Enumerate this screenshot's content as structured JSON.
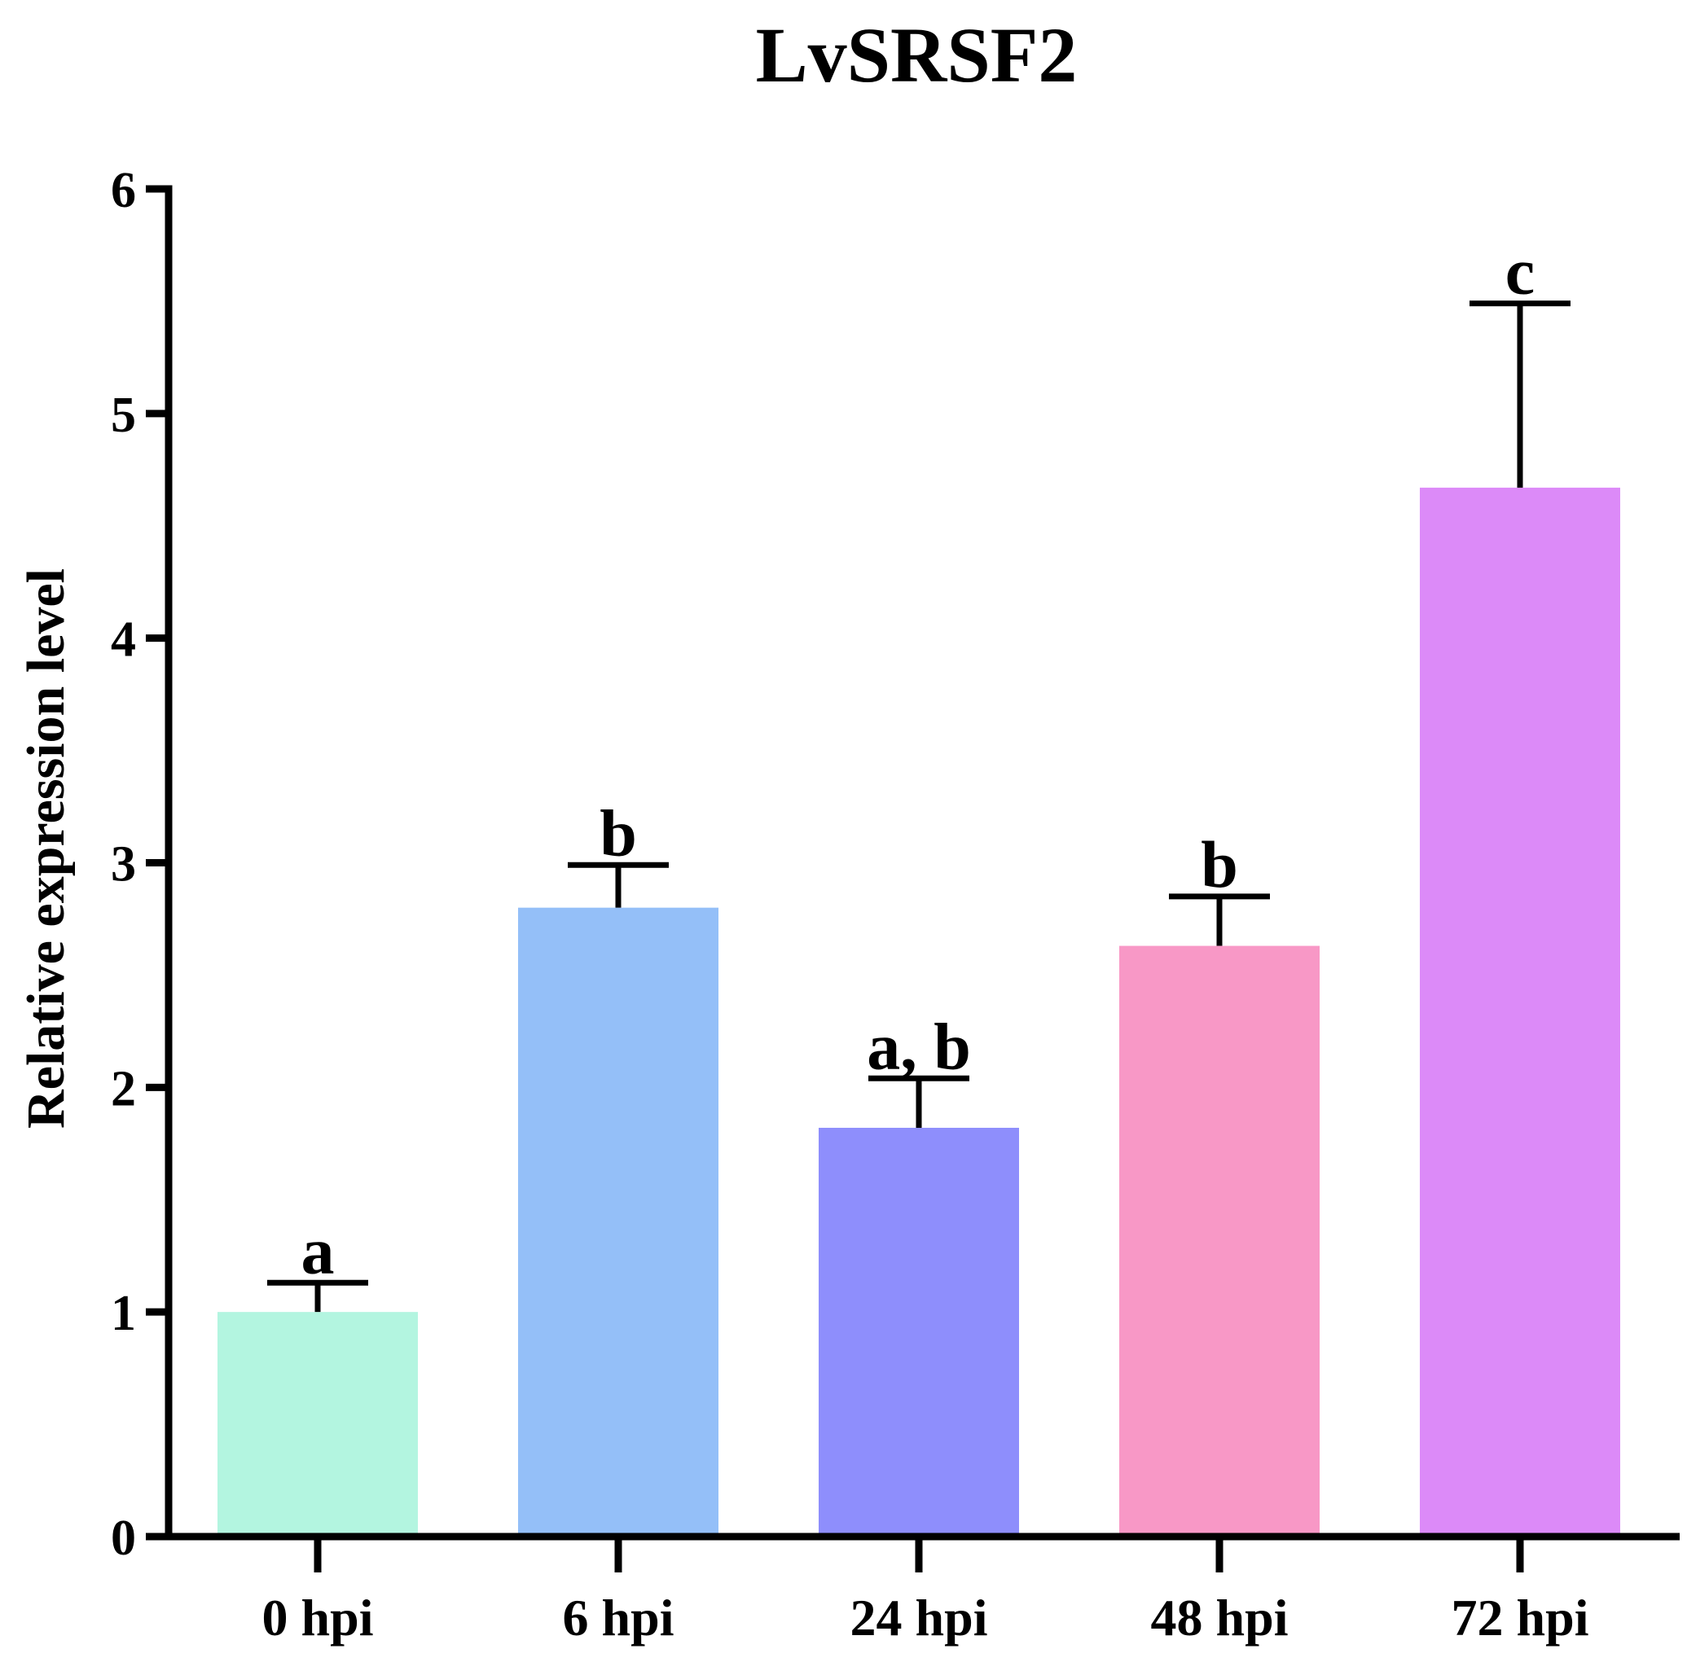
{
  "chart_data": {
    "type": "bar",
    "title": "LvSRSF2",
    "xlabel": "",
    "ylabel": "Relative expression level",
    "ylim": [
      0,
      6
    ],
    "yticks": [
      0,
      1,
      2,
      3,
      4,
      5,
      6
    ],
    "grid": false,
    "categories": [
      "0 hpi",
      "6 hpi",
      "24 hpi",
      "48 hpi",
      "72 hpi"
    ],
    "values": [
      1.0,
      2.8,
      1.82,
      2.63,
      4.67
    ],
    "errors": [
      0.13,
      0.19,
      0.22,
      0.22,
      0.82
    ],
    "significance": [
      "a",
      "b",
      "a, b",
      "b",
      "c"
    ],
    "colors": [
      "#b3f5e0",
      "#94bff8",
      "#8e8efc",
      "#f898c6",
      "#dc8af8"
    ]
  }
}
